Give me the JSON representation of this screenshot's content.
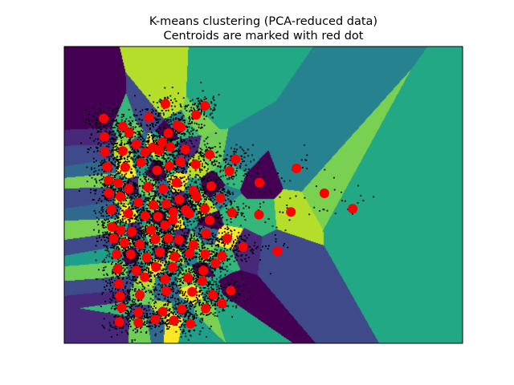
{
  "chart_data": {
    "type": "scatter",
    "title": "K-means clustering (PCA-reduced data)",
    "subtitle": "Centroids are marked with red dot",
    "xlabel": "",
    "ylabel": "",
    "xlim": [
      0,
      100
    ],
    "ylim": [
      0,
      75
    ],
    "grid": false,
    "axis_ticks": false,
    "background": "voronoi-decision-regions",
    "colors": {
      "points": "#000000",
      "centroids": "#ff0000",
      "regions": [
        "#440154",
        "#482878",
        "#3e4a89",
        "#31688e",
        "#26828e",
        "#1f9e89",
        "#22a884",
        "#35b779",
        "#6ece58",
        "#b5de2b",
        "#fde725",
        "#7ad151"
      ]
    },
    "series": [
      {
        "name": "",
        "role": "centroids",
        "color": "#ff0000",
        "points": [
          [
            9.9,
            56.8
          ],
          [
            14.7,
            54.8
          ],
          [
            21.3,
            57.1
          ],
          [
            25.4,
            60.5
          ],
          [
            28.4,
            55.1
          ],
          [
            33.1,
            57.7
          ],
          [
            35.3,
            60.0
          ],
          [
            10.1,
            52.2
          ],
          [
            16.3,
            53.2
          ],
          [
            18.1,
            50.3
          ],
          [
            22.2,
            49.4
          ],
          [
            24.6,
            50.8
          ],
          [
            26.1,
            53.1
          ],
          [
            29.3,
            54.6
          ],
          [
            10.2,
            48.4
          ],
          [
            14.7,
            48.6
          ],
          [
            20.3,
            48.3
          ],
          [
            23.9,
            48.8
          ],
          [
            26.7,
            49.6
          ],
          [
            30.4,
            49.0
          ],
          [
            36.5,
            47.7
          ],
          [
            10.8,
            44.6
          ],
          [
            15.3,
            44.5
          ],
          [
            19.3,
            45.7
          ],
          [
            23.3,
            43.7
          ],
          [
            26.4,
            44.8
          ],
          [
            29.2,
            45.9
          ],
          [
            33.0,
            45.2
          ],
          [
            43.0,
            46.5
          ],
          [
            11.1,
            41.2
          ],
          [
            13.5,
            40.5
          ],
          [
            16.2,
            39.1
          ],
          [
            21.0,
            39.5
          ],
          [
            24.8,
            39.0
          ],
          [
            28.2,
            40.6
          ],
          [
            32.4,
            38.6
          ],
          [
            36.9,
            39.7
          ],
          [
            41.5,
            43.5
          ],
          [
            11.2,
            37.9
          ],
          [
            14.1,
            37.1
          ],
          [
            18.6,
            35.6
          ],
          [
            22.4,
            34.9
          ],
          [
            25.6,
            35.2
          ],
          [
            28.9,
            36.3
          ],
          [
            33.2,
            37.1
          ],
          [
            11.8,
            33.8
          ],
          [
            16.1,
            32.8
          ],
          [
            20.3,
            32.2
          ],
          [
            23.5,
            32.0
          ],
          [
            27.4,
            33.2
          ],
          [
            30.5,
            33.7
          ],
          [
            35.3,
            34.0
          ],
          [
            39.2,
            36.7
          ],
          [
            12.0,
            29.4
          ],
          [
            14.2,
            28.6
          ],
          [
            17.0,
            28.2
          ],
          [
            21.8,
            28.6
          ],
          [
            25.3,
            29.8
          ],
          [
            27.3,
            31.2
          ],
          [
            31.4,
            32.8
          ],
          [
            36.5,
            31.1
          ],
          [
            42.1,
            33.0
          ],
          [
            12.4,
            26.5
          ],
          [
            15.1,
            25.4
          ],
          [
            19.0,
            25.0
          ],
          [
            22.9,
            26.3
          ],
          [
            26.1,
            26.5
          ],
          [
            28.8,
            26.2
          ],
          [
            32.4,
            24.9
          ],
          [
            35.6,
            27.7
          ],
          [
            40.9,
            26.5
          ],
          [
            13.1,
            22.5
          ],
          [
            16.7,
            22.5
          ],
          [
            20.7,
            21.7
          ],
          [
            24.0,
            23.0
          ],
          [
            27.7,
            21.9
          ],
          [
            31.5,
            22.7
          ],
          [
            35.4,
            22.5
          ],
          [
            38.0,
            20.2
          ],
          [
            44.9,
            24.3
          ],
          [
            13.4,
            18.8
          ],
          [
            18.1,
            18.4
          ],
          [
            23.0,
            19.3
          ],
          [
            27.2,
            19.2
          ],
          [
            34.9,
            18.4
          ],
          [
            39.6,
            22.1
          ],
          [
            13.7,
            15.0
          ],
          [
            20.2,
            16.7
          ],
          [
            25.3,
            16.2
          ],
          [
            31.1,
            16.5
          ],
          [
            34.7,
            15.7
          ],
          [
            14.0,
            11.9
          ],
          [
            19.0,
            12.2
          ],
          [
            25.6,
            13.2
          ],
          [
            32.1,
            13.0
          ],
          [
            37.3,
            12.2
          ],
          [
            41.8,
            13.3
          ],
          [
            14.4,
            9.0
          ],
          [
            18.6,
            7.8
          ],
          [
            24.7,
            8.0
          ],
          [
            29.5,
            8.6
          ],
          [
            35.5,
            8.8
          ],
          [
            39.6,
            10.1
          ],
          [
            13.8,
            5.4
          ],
          [
            18.6,
            5.2
          ],
          [
            22.8,
            6.0
          ],
          [
            27.5,
            5.8
          ],
          [
            31.7,
            4.9
          ],
          [
            49.0,
            40.6
          ],
          [
            48.9,
            32.5
          ],
          [
            53.5,
            23.3
          ],
          [
            56.9,
            33.2
          ],
          [
            58.3,
            44.2
          ],
          [
            65.3,
            37.9
          ],
          [
            72.4,
            34.0
          ]
        ]
      }
    ]
  }
}
